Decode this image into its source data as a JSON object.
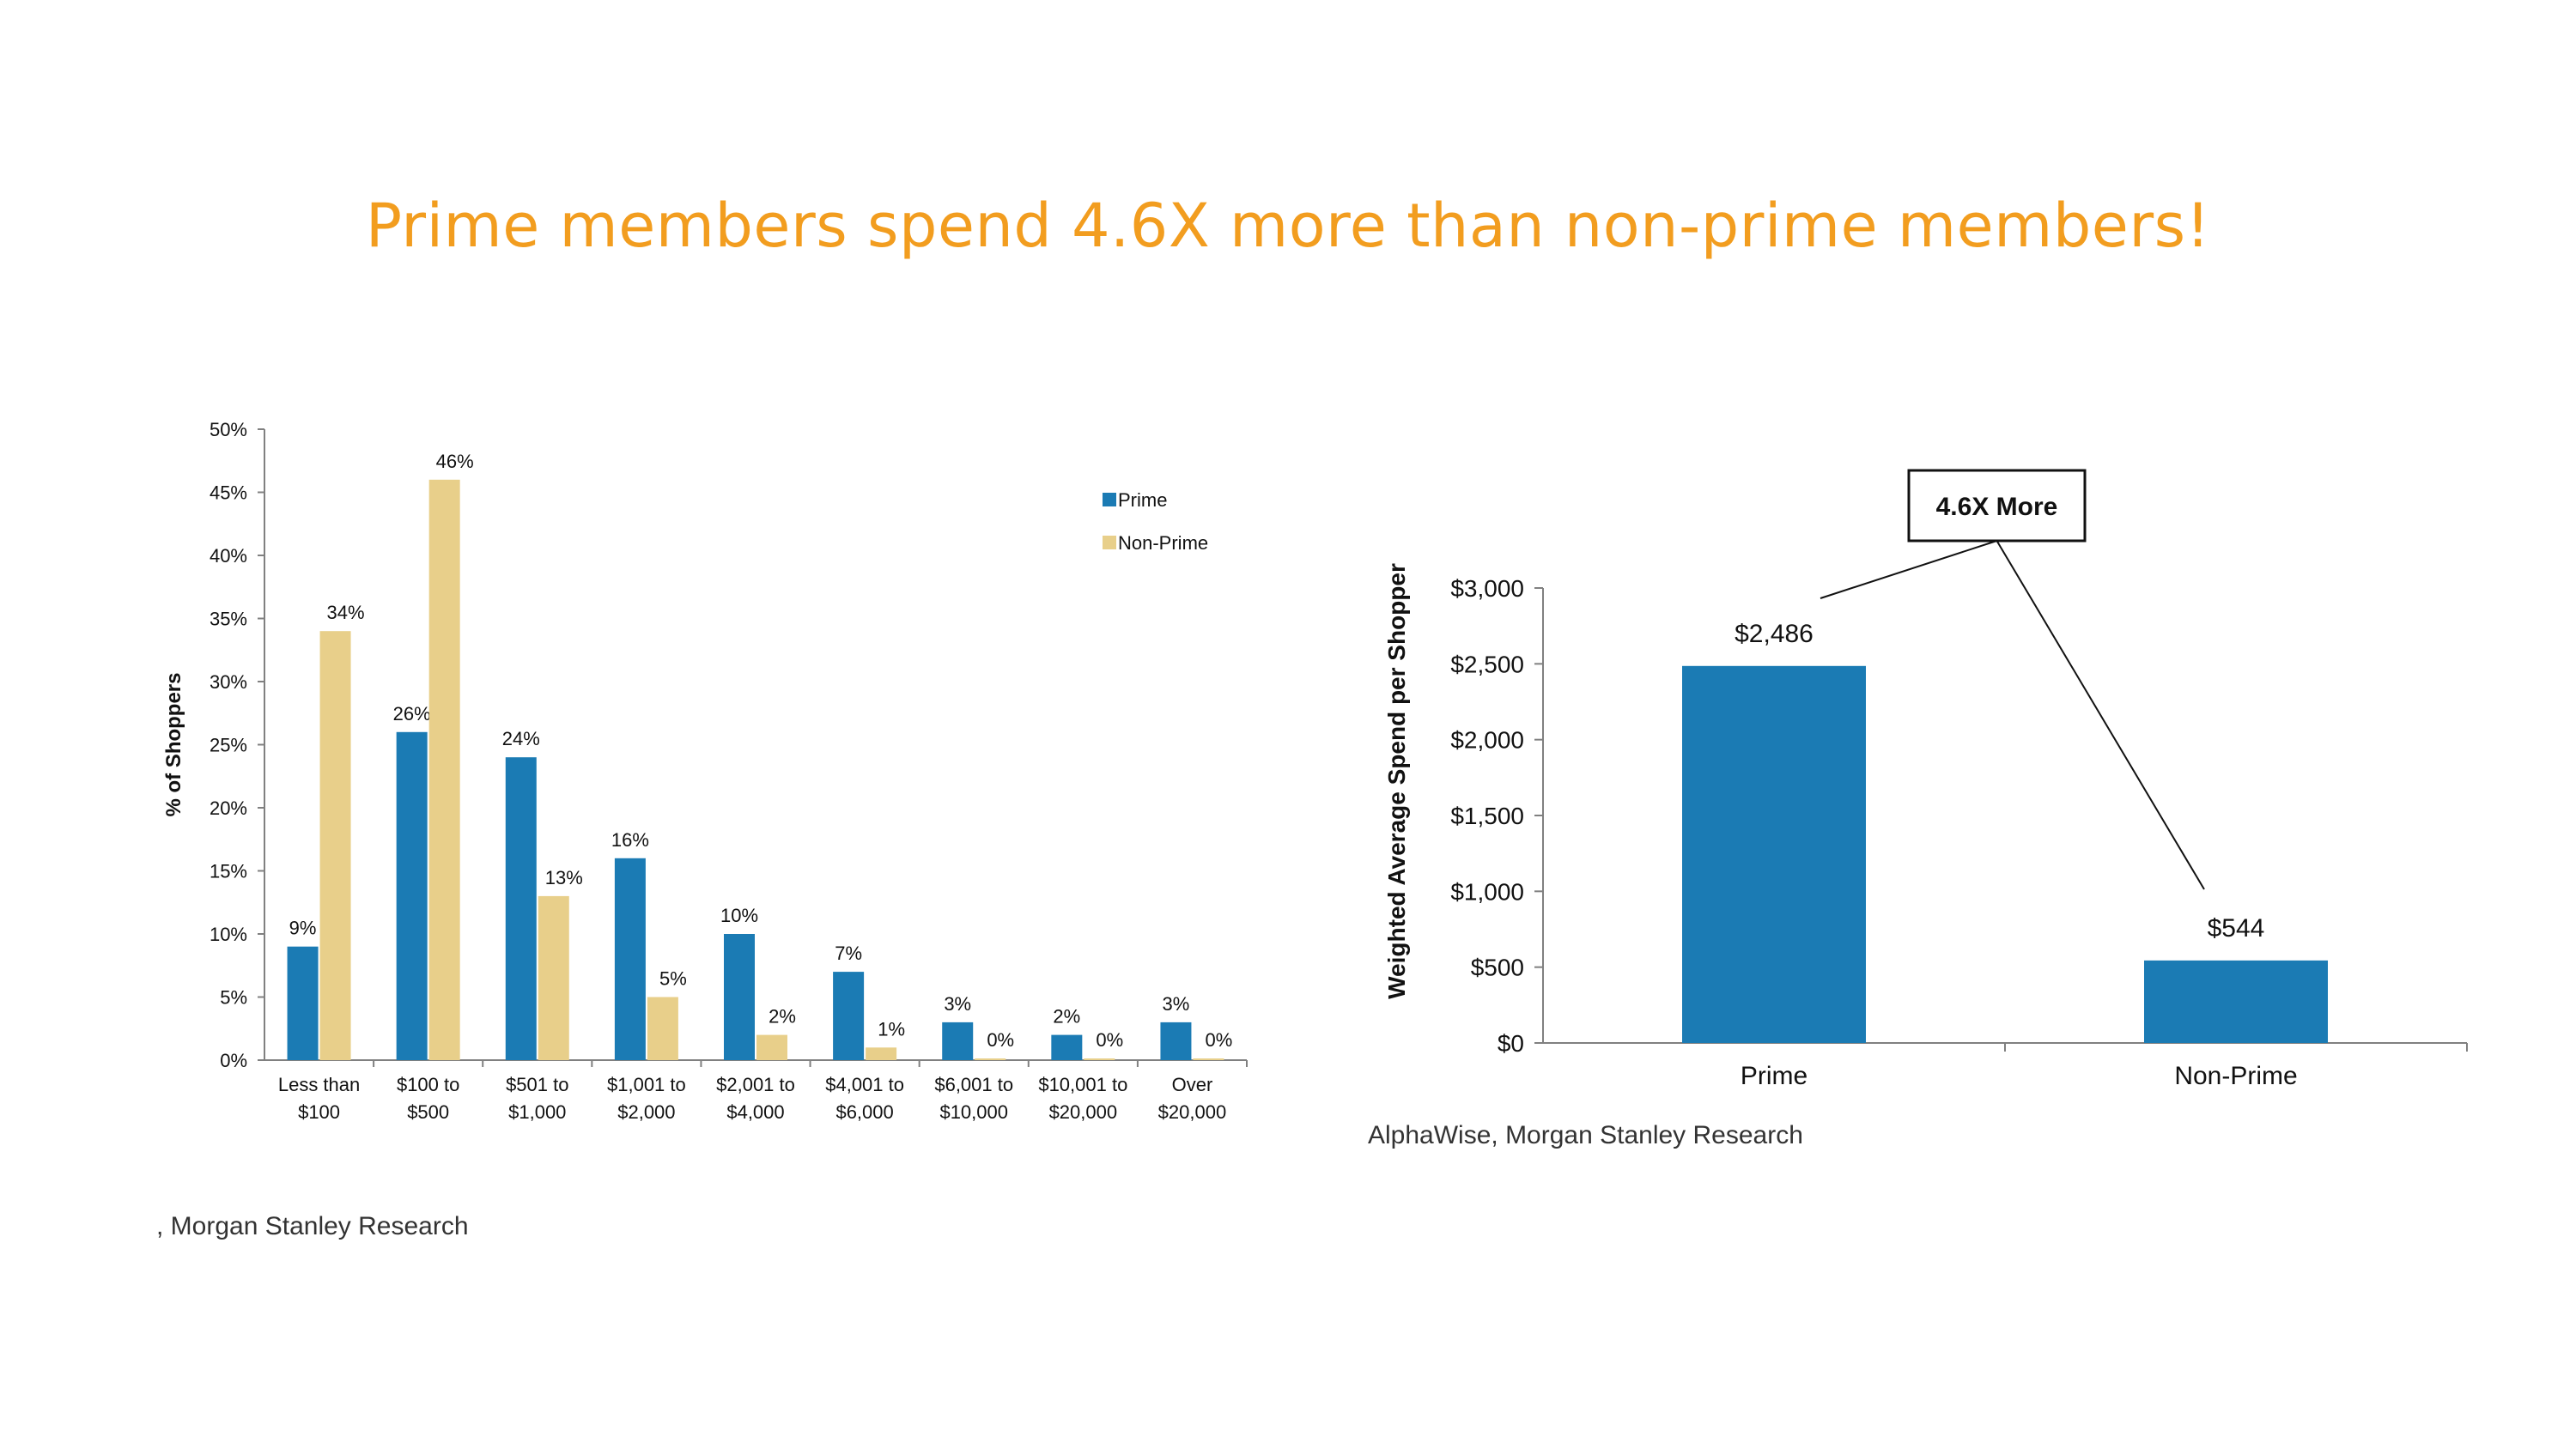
{
  "slide": {
    "title": "Prime members spend 4.6X more than non-prime members!"
  },
  "colors": {
    "title": "#F29D1F",
    "prime": "#1B7BB4",
    "non_prime": "#E8CF8A"
  },
  "chart_data": [
    {
      "type": "bar",
      "ylabel": "% of Shoppers",
      "ylim": [
        0,
        50
      ],
      "yticks": [
        "0%",
        "5%",
        "10%",
        "15%",
        "20%",
        "25%",
        "30%",
        "35%",
        "40%",
        "45%",
        "50%"
      ],
      "categories": [
        [
          "Less than",
          "$100"
        ],
        [
          "$100 to",
          "$500"
        ],
        [
          "$501 to",
          "$1,000"
        ],
        [
          "$1,001 to",
          "$2,000"
        ],
        [
          "$2,001 to",
          "$4,000"
        ],
        [
          "$4,001 to",
          "$6,000"
        ],
        [
          "$6,001 to",
          "$10,000"
        ],
        [
          "$10,001 to",
          "$20,000"
        ],
        [
          "Over",
          "$20,000"
        ]
      ],
      "series": [
        {
          "name": "Prime",
          "values": [
            9,
            26,
            24,
            16,
            10,
            7,
            3,
            2,
            3
          ],
          "labels": [
            "9%",
            "26%",
            "24%",
            "16%",
            "10%",
            "7%",
            "3%",
            "2%",
            "3%"
          ]
        },
        {
          "name": "Non-Prime",
          "values": [
            34,
            46,
            13,
            5,
            2,
            1,
            0,
            0,
            0
          ],
          "labels": [
            "34%",
            "46%",
            "13%",
            "5%",
            "2%",
            "1%",
            "0%",
            "0%",
            "0%"
          ]
        }
      ],
      "legend": "top-right",
      "source": ", Morgan Stanley Research"
    },
    {
      "type": "bar",
      "ylabel": "Weighted Average Spend per Shopper",
      "ylim": [
        0,
        3000
      ],
      "yticks": [
        "$0",
        "$500",
        "$1,000",
        "$1,500",
        "$2,000",
        "$2,500",
        "$3,000"
      ],
      "categories": [
        "Prime",
        "Non-Prime"
      ],
      "values": [
        2486,
        544
      ],
      "labels": [
        "$2,486",
        "$544"
      ],
      "annotation": "4.6X More",
      "source": "AlphaWise, Morgan Stanley Research"
    }
  ]
}
